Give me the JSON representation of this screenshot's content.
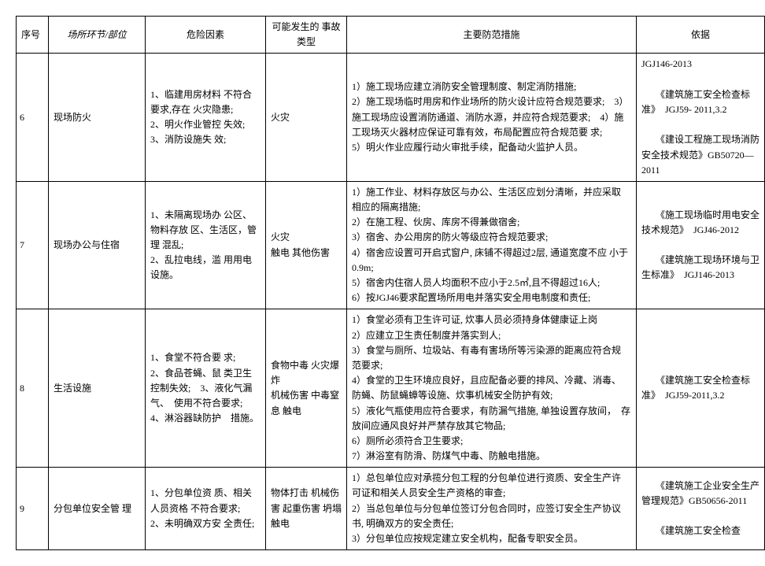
{
  "headers": {
    "idx": "序号",
    "place": "场所环节/部位",
    "risk": "危险因素",
    "type": "可能发生的 事故类型",
    "measure": "主要防范措施",
    "basis": "依据"
  },
  "rows": [
    {
      "idx": "6",
      "place": "现场防火",
      "risk": "1、临建用房材料 不符合要求,存在 火灾隐患;\n2、明火作业管控 失效;\n3、消防设施失 效;",
      "type": "火灾",
      "measure": "1）施工现场应建立消防安全管理制度、制定消防措施;\n2）施工现场临时用房和作业场所的防火设计应符合规范要求;　3）施工现场应设置消防通道、消防水源，并应符合规范要求;　4）施工现场灭火器材应保证可靠有效，布局配置应符合规范要 求;\n5）明火作业应履行动火审批手续，配备动火监护人员。",
      "basis": "JGJ146-2013\n\n　　《建筑施工安全检查标准》　JGJ59- 2011,3.2\n\n　　《建设工程施工现场消防安全技术规范》GB50720—2011"
    },
    {
      "idx": "7",
      "place": "现场办公与住宿",
      "risk": "1、未隔离现场办 公区、物料存放 区、生活区，管理 混乱;\n2、乱拉电线，滥 用用电设施。",
      "type": "火灾\n触电 其他伤害",
      "measure": "1）施工作业、材料存放区与办公、生活区应划分清晰，并应采取 相应的隔离措施;\n2）在施工程、伙房、库房不得兼做宿舍;\n3）宿舍、办公用房的防火等级应符合规范要求;\n4）宿舍应设置可开启式窗户, 床铺不得超过2层, 通道宽度不应 小于0.9m;\n5）宿舍内住宿人员人均面积不应小于2.5㎡,且不得超过16人;\n6）按JGJ46要求配置场所用电并落实安全用电制度和责任;",
      "basis": "　　《施工现场临时用电安全技术规范》　JGJ46-2012\n\n　　《建筑施工现场环境与卫生标准》　JGJ146-2013"
    },
    {
      "idx": "8",
      "place": "生活设施",
      "risk": "1、食堂不符合要 求;\n2、食品苍蝇、鼠 类卫生控制失效;　3、液化气漏气、　使用不符合要求;　4、淋浴器缺防护　措施。",
      "type": "食物中毒 火灾爆炸\n机械伤害 中毒窒息 触电",
      "measure": "1）食堂必须有卫生许可证, 炊事人员必须持身体健康证上岗\n2）应建立卫生责任制度并落实到人;\n3）食堂与厕所、垃圾站、有毒有害场所等污染源的距离应符合规 范要求;\n4）食堂的卫生环境应良好，且应配备必要的排风、冷藏、消毒、 防蝇、防鼠蝇蟑等设施、炊事机械安全防护有效;\n5）液化气瓶使用应符合要求，有防漏气措施, 单独设置存放间，　存放间应通风良好并严禁存放其它物品;\n6）厕所必须符合卫生要求;\n7）淋浴室有防滑、防煤气中毒、防触电措施。",
      "basis": "　　《建筑施工安全检查标准》　JGJ59-2011,3.2"
    },
    {
      "idx": "9",
      "place": "分包单位安全管 理",
      "risk": "1、分包单位资 质、相关人员资格 不符合要求;\n2、未明确双方安 全责任;",
      "type": "物体打击 机械伤害 起重伤害 坍塌 触电",
      "measure": "1）总包单位应对承揽分包工程的分包单位进行资质、安全生产许 可证和相关人员安全生产资格的审查;\n2）当总包单位与分包单位签订分包合同时，应签订安全生产协议 书, 明确双方的安全责任;\n3）分包单位应按规定建立安全机构，配备专职安全员。",
      "basis": "　　《建筑施工企业安全生产管理规范》GB50656-2011\n\n　　《建筑施工安全检查"
    }
  ]
}
